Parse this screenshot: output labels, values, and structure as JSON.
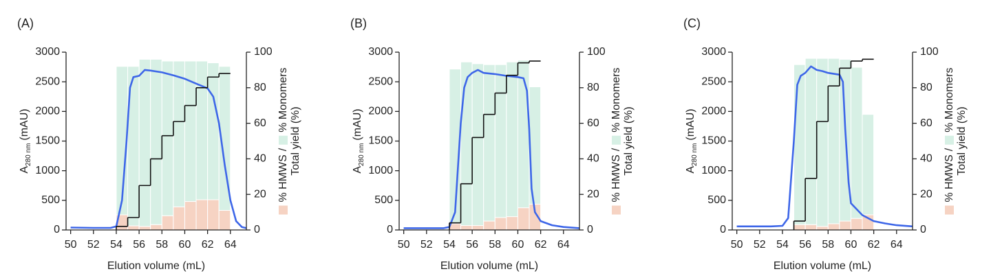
{
  "chart_data": [
    {
      "type": "chromatogram",
      "panel_label": "(A)",
      "xlabel": "Elution volume (mL)",
      "ylabel": {
        "main": "A",
        "subscript": "280 nm",
        "unit": "(mAU)"
      },
      "legend_separator": "/",
      "y2label": "Total yield (%)",
      "xlim": [
        49.6,
        65.4
      ],
      "xticks": [
        50,
        52,
        54,
        56,
        58,
        60,
        62,
        64
      ],
      "ylim": [
        0,
        3000
      ],
      "yticks": [
        0,
        500,
        1000,
        1500,
        2000,
        2500,
        3000
      ],
      "y2lim": [
        0,
        100
      ],
      "y2ticks": [
        0,
        20,
        40,
        60,
        80,
        100
      ],
      "trace": {
        "color": "#3d66e8",
        "x": [
          50,
          52,
          53.5,
          54,
          54.5,
          54.9,
          55.2,
          55.5,
          56,
          56.5,
          57,
          58,
          59,
          60,
          61,
          62,
          62.5,
          63,
          63.5,
          64,
          64.5,
          65,
          65.4
        ],
        "values": [
          40,
          35,
          35,
          60,
          500,
          1500,
          2400,
          2580,
          2600,
          2700,
          2690,
          2660,
          2610,
          2550,
          2470,
          2390,
          2250,
          1800,
          1100,
          500,
          150,
          50,
          30
        ]
      },
      "bars": {
        "bins": [
          54,
          55,
          56,
          57,
          58,
          59,
          60,
          61,
          62,
          63,
          64
        ],
        "series": [
          {
            "name": "% HMWS",
            "color": "#f6d3c3",
            "values": [
              8.5,
              2.3,
              2,
              3,
              8,
              13,
              16,
              17,
              17,
              11
            ]
          },
          {
            "name": "% Monomers",
            "color": "#d7f0e5",
            "values": [
              83.5,
              89.7,
              94,
              93,
              87,
              82,
              79,
              78,
              77,
              81
            ]
          }
        ]
      },
      "yield": {
        "color": "#111111",
        "values": [
          2,
          7,
          25,
          40,
          53,
          61,
          70,
          80,
          86,
          88
        ]
      }
    },
    {
      "type": "chromatogram",
      "panel_label": "(B)",
      "xlabel": "Elution volume (mL)",
      "ylabel": {
        "main": "A",
        "subscript": "280 nm",
        "unit": "(mAU)"
      },
      "legend_separator": "/",
      "y2label": "Total yield (%)",
      "xlim": [
        49.6,
        65.4
      ],
      "xticks": [
        50,
        52,
        54,
        56,
        58,
        60,
        62,
        64
      ],
      "ylim": [
        0,
        3000
      ],
      "yticks": [
        0,
        500,
        1000,
        1500,
        2000,
        2500,
        3000
      ],
      "y2lim": [
        0,
        100
      ],
      "y2ticks": [
        0,
        20,
        40,
        60,
        80,
        100
      ],
      "trace": {
        "color": "#3d66e8",
        "x": [
          50,
          52,
          53.5,
          54,
          54.5,
          55,
          55.3,
          55.6,
          56,
          56.5,
          57,
          58,
          59,
          60,
          60.5,
          60.8,
          61,
          61.2,
          61.5,
          62,
          63,
          64,
          65.4
        ],
        "values": [
          30,
          30,
          30,
          50,
          300,
          1800,
          2400,
          2580,
          2650,
          2700,
          2650,
          2630,
          2600,
          2580,
          2560,
          2350,
          1700,
          700,
          300,
          150,
          80,
          50,
          30
        ]
      },
      "bars": {
        "bins": [
          54,
          55,
          56,
          57,
          58,
          59,
          60,
          61,
          62
        ],
        "series": [
          {
            "name": "% HMWS",
            "color": "#f6d3c3",
            "values": [
              3.5,
              2.5,
              2.5,
              5,
              7,
              7.5,
              12.5,
              14.5
            ]
          },
          {
            "name": "% Monomers",
            "color": "#d7f0e5",
            "values": [
              87,
              92,
              91,
              88,
              86,
              87,
              83,
              66
            ]
          }
        ]
      },
      "yield": {
        "color": "#111111",
        "values": [
          4,
          26,
          52,
          65,
          77,
          87,
          94,
          95
        ]
      }
    },
    {
      "type": "chromatogram",
      "panel_label": "(C)",
      "xlabel": "Elution volume (mL)",
      "ylabel": {
        "main": "A",
        "subscript": "280 nm",
        "unit": "(mAU)"
      },
      "legend_separator": "/",
      "y2label": "Total yield (%)",
      "xlim": [
        49.6,
        65.4
      ],
      "xticks": [
        50,
        52,
        54,
        56,
        58,
        60,
        62,
        64
      ],
      "ylim": [
        0,
        3000
      ],
      "yticks": [
        0,
        500,
        1000,
        1500,
        2000,
        2500,
        3000
      ],
      "y2lim": [
        0,
        100
      ],
      "y2ticks": [
        0,
        20,
        40,
        60,
        80,
        100
      ],
      "trace": {
        "color": "#3d66e8",
        "x": [
          50,
          53,
          54,
          54.5,
          55,
          55.3,
          55.6,
          56,
          56.5,
          57,
          57.5,
          58,
          59,
          59.3,
          59.5,
          59.8,
          60,
          61,
          62,
          63,
          64,
          65.4
        ],
        "values": [
          60,
          60,
          70,
          200,
          1500,
          2450,
          2600,
          2650,
          2760,
          2700,
          2680,
          2650,
          2620,
          2500,
          1700,
          800,
          450,
          250,
          150,
          110,
          80,
          60
        ]
      },
      "bars": {
        "bins": [
          55,
          56,
          57,
          58,
          59,
          60,
          61,
          62
        ],
        "series": [
          {
            "name": "% HMWS",
            "color": "#f6d3c3",
            "values": [
              3,
              3,
              2,
              3.5,
              5,
              6.5,
              8.5
            ]
          },
          {
            "name": "% Monomers",
            "color": "#d7f0e5",
            "values": [
              90,
              93.5,
              94.5,
              93,
              91,
              85,
              56.5
            ]
          }
        ]
      },
      "yield": {
        "color": "#111111",
        "values": [
          5,
          29,
          61,
          81,
          91,
          95,
          96
        ]
      }
    }
  ]
}
